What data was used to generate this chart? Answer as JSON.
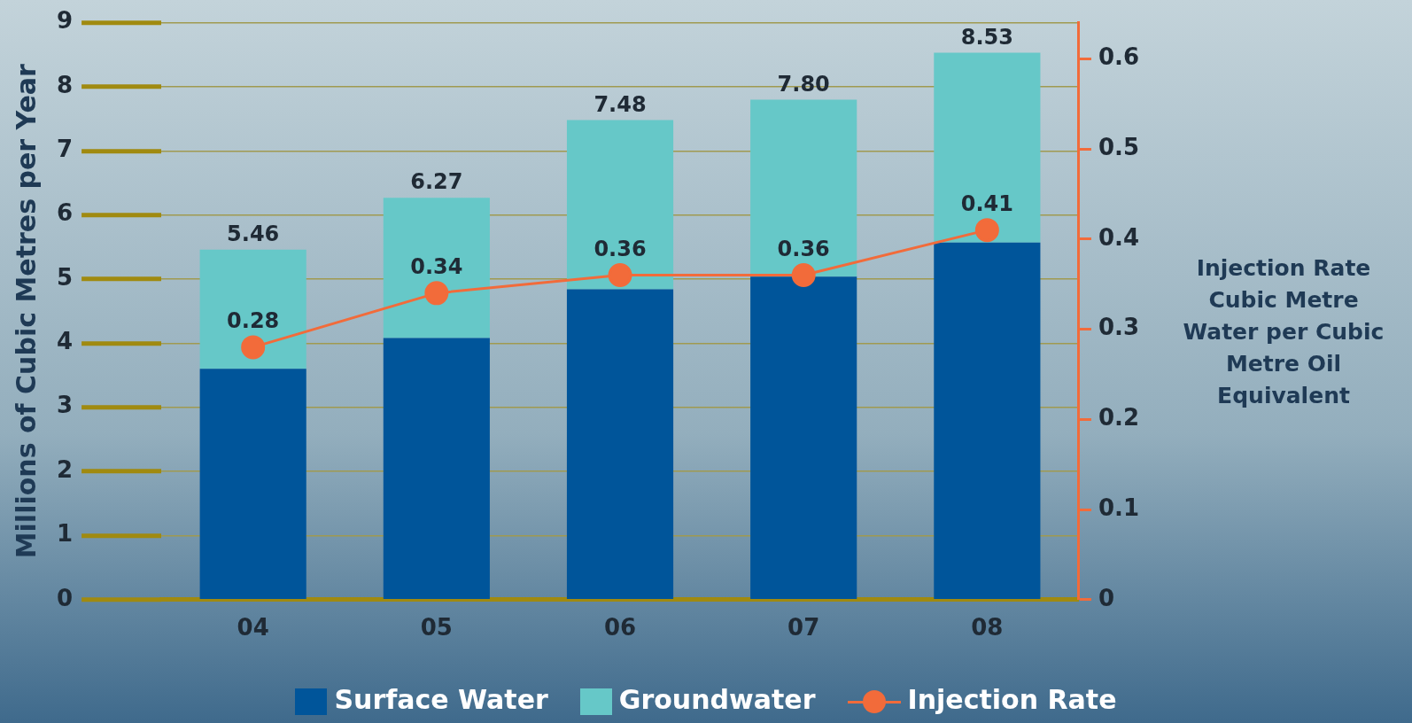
{
  "chart_data": {
    "type": "bar",
    "stacked": true,
    "categories": [
      "04",
      "05",
      "06",
      "07",
      "08"
    ],
    "ylabel": "Millions of Cubic Metres per Year",
    "y2label": "Injection Rate Cubic Metre Water per Cubic Metre Oil Equivalent",
    "ylim": [
      0,
      9
    ],
    "yticks": [
      0,
      1,
      2,
      3,
      4,
      5,
      6,
      7,
      8,
      9
    ],
    "y2lim": [
      0,
      0.64
    ],
    "y2ticks": [
      0,
      0.1,
      0.2,
      0.3,
      0.4,
      0.5,
      0.6
    ],
    "series": [
      {
        "name": "Surface Water",
        "color": "#00559a",
        "values": [
          3.6,
          4.08,
          4.84,
          5.04,
          5.57
        ]
      },
      {
        "name": "Groundwater",
        "color": "#66c8c8",
        "values": [
          1.86,
          2.19,
          2.64,
          2.76,
          2.96
        ]
      },
      {
        "name": "Injection Rate",
        "type": "line",
        "axis": "y2",
        "color": "#f26b3a",
        "values": [
          0.28,
          0.34,
          0.36,
          0.36,
          0.41
        ],
        "value_labels": [
          "0.28",
          "0.34",
          "0.36",
          "0.36",
          "0.41"
        ]
      }
    ],
    "totals": [
      "5.46",
      "6.27",
      "7.48",
      "7.80",
      "8.53"
    ],
    "grid": "y",
    "legend": "bottom",
    "marker": "circle"
  }
}
